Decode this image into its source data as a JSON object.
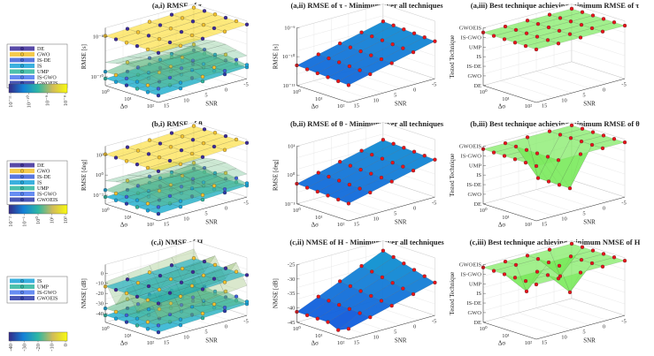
{
  "rows": [
    {
      "legend": [
        "DE",
        "GWO",
        "IS-DE",
        "IS",
        "UMP",
        "IS-GWO",
        "GWOEIS"
      ],
      "colorbar_ticks": [
        "10⁻¹¹",
        "10⁻¹⁰",
        "10⁻⁹",
        "10⁻⁸"
      ]
    },
    {
      "legend": [
        "DE",
        "GWO",
        "IS-DE",
        "IS",
        "UMP",
        "IS-GWO",
        "GWOEIS"
      ],
      "colorbar_ticks": [
        "10⁻²",
        "10⁻¹",
        "10⁰",
        "10¹",
        "10²"
      ]
    },
    {
      "legend": [
        "IS",
        "UMP",
        "IS-GWO",
        "GWOEIS"
      ],
      "colorbar_ticks": [
        "-40",
        "-30",
        "-20",
        "-10",
        "0"
      ]
    }
  ],
  "panels": [
    {
      "title": "(a,i) RMSE of τ",
      "zlabel": "RMSE [s]",
      "xlabel": "Δσ",
      "ylabel": "SNR",
      "zticks": [
        "10⁻⁸",
        "10⁻¹⁰"
      ],
      "xticks": [
        "10⁰",
        "10¹",
        "10²"
      ],
      "yticks": [
        "15",
        "10",
        "5",
        "0",
        "-5"
      ]
    },
    {
      "title": "(a,ii) RMSE of τ - Minimum over all techniques",
      "zlabel": "RMSE [s]",
      "xlabel": "Δσ",
      "ylabel": "SNR",
      "zticks": [
        "10⁻⁹",
        "10⁻¹⁰",
        "10⁻¹¹"
      ],
      "xticks": [
        "10⁰",
        "10¹",
        "10²"
      ],
      "yticks": [
        "15",
        "10",
        "5",
        "0",
        "-5"
      ]
    },
    {
      "title": "(a,iii) Best technique achieving minimum RMSE of τ",
      "zlabel": "Tested Technique",
      "xlabel": "Δσ",
      "ylabel": "SNR",
      "zticks": [
        "GWOEIS",
        "IS-GWO",
        "UMP",
        "IS",
        "IS-DE",
        "GWO",
        "DE"
      ],
      "xticks": [
        "10⁰",
        "10¹",
        "10²"
      ],
      "yticks": [
        "15",
        "10",
        "5",
        "0",
        "-5"
      ]
    },
    {
      "title": "(b,i) RMSE of θ",
      "zlabel": "RMSE [deg]",
      "xlabel": "Δσ",
      "ylabel": "SNR",
      "zticks": [
        "10²",
        "10⁰",
        "10⁻²"
      ],
      "xticks": [
        "10⁰",
        "10¹",
        "10²"
      ],
      "yticks": [
        "15",
        "10",
        "5",
        "0",
        "-5"
      ]
    },
    {
      "title": "(b,ii) RMSE of θ - Minimum over all techniques",
      "zlabel": "RMSE [deg]",
      "xlabel": "Δσ",
      "ylabel": "SNR",
      "zticks": [
        "10¹",
        "10⁰",
        "10⁻¹"
      ],
      "xticks": [
        "10⁰",
        "10¹",
        "10²"
      ],
      "yticks": [
        "15",
        "10",
        "5",
        "0",
        "-5"
      ]
    },
    {
      "title": "(b,iii) Best technique achieving minimum RMSE of θ",
      "zlabel": "Tested Technique",
      "xlabel": "Δσ",
      "ylabel": "SNR",
      "zticks": [
        "GWOEIS",
        "IS-GWO",
        "UMP",
        "IS",
        "IS-DE",
        "GWO",
        "DE"
      ],
      "xticks": [
        "10⁰",
        "10¹",
        "10²"
      ],
      "yticks": [
        "15",
        "10",
        "5",
        "0",
        "-5"
      ]
    },
    {
      "title": "(c,i) NMSE of H",
      "zlabel": "NMSE [dB]",
      "xlabel": "Δσ",
      "ylabel": "SNR",
      "zticks": [
        "0",
        "-10",
        "-20",
        "-30",
        "-40"
      ],
      "xticks": [
        "10⁰",
        "10¹",
        "10²"
      ],
      "yticks": [
        "15",
        "10",
        "5",
        "0",
        "-5"
      ]
    },
    {
      "title": "(c,ii) NMSE of H - Minimum over all techniques",
      "zlabel": "NMSE [dB]",
      "xlabel": "Δσ",
      "ylabel": "SNR",
      "zticks": [
        "-25",
        "-30",
        "-35",
        "-40",
        "-45"
      ],
      "xticks": [
        "10⁰",
        "10¹",
        "10²"
      ],
      "yticks": [
        "15",
        "10",
        "5",
        "0",
        "-5"
      ]
    },
    {
      "title": "(c,iii) Best technique achieving minimum NMSE of H",
      "zlabel": "Tested Technique",
      "xlabel": "Δσ",
      "ylabel": "SNR",
      "zticks": [
        "GWOEIS",
        "IS-GWO",
        "UMP",
        "IS",
        "IS-DE",
        "GWO",
        "DE"
      ],
      "xticks": [
        "10⁰",
        "10¹",
        "10²"
      ],
      "yticks": [
        "15",
        "10",
        "5",
        "0",
        "-5"
      ]
    }
  ]
}
